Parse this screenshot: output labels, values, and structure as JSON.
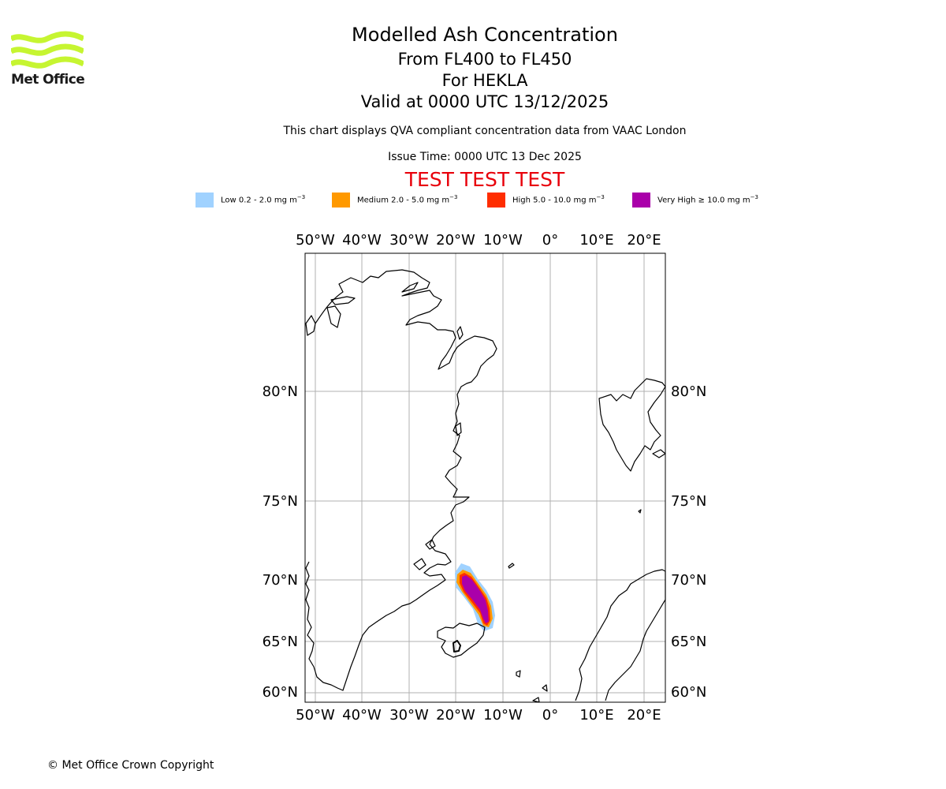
{
  "logo": {
    "name": "Met Office",
    "logo_color": "#c6f531"
  },
  "title": {
    "line1": "Modelled Ash Concentration",
    "line2": "From FL400 to FL450",
    "line3": "For HEKLA",
    "line4": "Valid at 0000 UTC 13/12/2025"
  },
  "subtitle": "This chart displays QVA compliant concentration data from VAAC London",
  "issue_time": "Issue Time: 0000 UTC 13 Dec 2025",
  "test_banner": {
    "text": "TEST TEST TEST",
    "color": "#e8000b"
  },
  "legend": [
    {
      "label": "Low 0.2 - 2.0 mg m",
      "color": "#a0d2ff"
    },
    {
      "label": "Medium 2.0 - 5.0 mg m",
      "color": "#ff9900"
    },
    {
      "label": "High 5.0 - 10.0 mg m",
      "color": "#ff2d00"
    },
    {
      "label": "Very High ≥ 10.0 mg m",
      "color": "#aa00aa"
    }
  ],
  "legend_unit_exponent": "−3",
  "map": {
    "lon_labels": [
      "50°W",
      "40°W",
      "30°W",
      "20°W",
      "10°W",
      "0°",
      "10°E",
      "20°E"
    ],
    "lat_labels": [
      "80°N",
      "75°N",
      "70°N",
      "65°N",
      "60°N"
    ],
    "gridline_color": "#b0b0b0",
    "coast_color": "#000000"
  },
  "copyright": "© Met Office Crown Copyright"
}
